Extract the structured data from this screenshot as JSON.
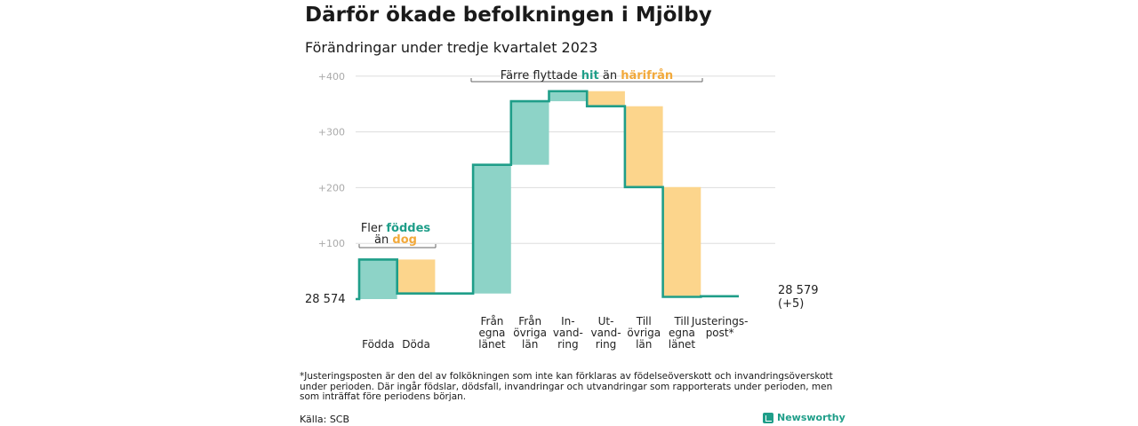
{
  "title": "Därför ökade befolkningen i Mjölby",
  "subtitle": "Förändringar under tredje kvartalet 2023",
  "footnote": "*Justeringsposten är den del av folkökningen som inte kan förklaras av födelseöverskott och invandringsöverskott under perioden. Där ingår födslar, dödsfall, invandringar och utvandringar som rapporterats under perioden, men som inträffat före periodens början.",
  "source": "Källa: SCB",
  "logo_text": "Newsworthy",
  "colors": {
    "increase": "#8dd3c7",
    "decrease": "#fcd58c",
    "line": "#1f9e89",
    "hit": "#1f9e89",
    "harifran": "#f2a93b"
  },
  "annotations": {
    "born": {
      "line1": "Fler",
      "highlight1": "föddes",
      "line2": "än",
      "highlight2": "dog"
    },
    "moved": {
      "pre": "Färre flyttade",
      "highlight1": "hit",
      "mid": "än",
      "highlight2": "härifrån"
    }
  },
  "chart_data": {
    "type": "waterfall",
    "base": 28574,
    "base_label": "28  574",
    "end_label_line1": "28 579",
    "end_label_line2": "(+5)",
    "yticks": [
      {
        "value": 100,
        "label": "+100"
      },
      {
        "value": 200,
        "label": "+200"
      },
      {
        "value": 300,
        "label": "+300"
      },
      {
        "value": 400,
        "label": "+400"
      }
    ],
    "ylim": [
      0,
      400
    ],
    "steps": [
      {
        "label": [
          "Födda"
        ],
        "delta": 71,
        "kind": "increase"
      },
      {
        "label": [
          "Döda"
        ],
        "delta": -61,
        "kind": "decrease"
      },
      {
        "label": [],
        "delta": 0,
        "kind": "gap"
      },
      {
        "label": [
          "Från",
          "egna",
          "länet"
        ],
        "delta": 231,
        "kind": "increase"
      },
      {
        "label": [
          "Från",
          "övriga",
          "län"
        ],
        "delta": 114,
        "kind": "increase"
      },
      {
        "label": [
          "In-",
          "vand-",
          "ring"
        ],
        "delta": 18,
        "kind": "increase"
      },
      {
        "label": [
          "Ut-",
          "vand-",
          "ring"
        ],
        "delta": -27,
        "kind": "decrease"
      },
      {
        "label": [
          "Till",
          "övriga",
          "län"
        ],
        "delta": -145,
        "kind": "decrease"
      },
      {
        "label": [
          "Till",
          "egna",
          "länet"
        ],
        "delta": -197,
        "kind": "decrease"
      },
      {
        "label": [
          "Justerings-",
          "post*"
        ],
        "delta": 1,
        "kind": "increase"
      }
    ]
  }
}
